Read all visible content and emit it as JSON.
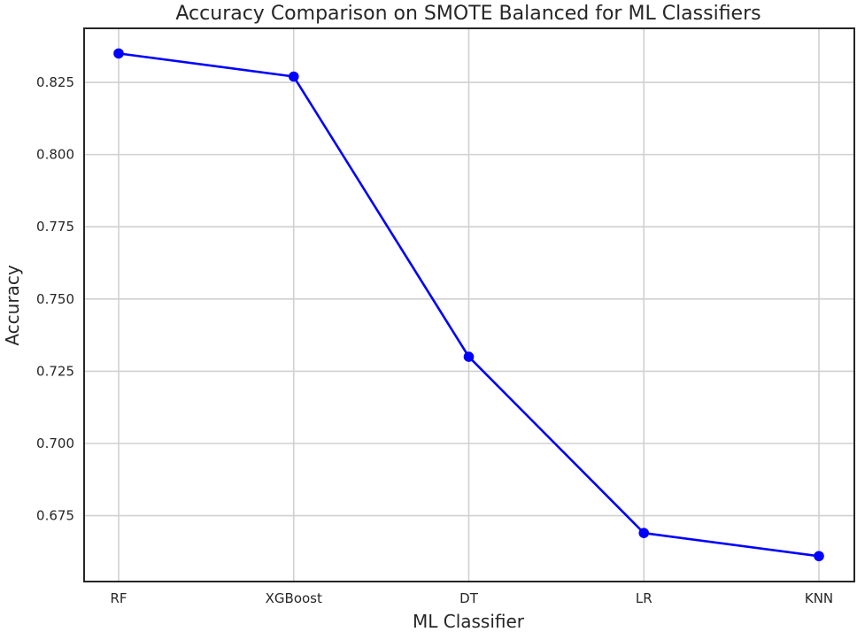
{
  "chart_data": {
    "type": "line",
    "title": "Accuracy Comparison on SMOTE Balanced for ML Classifiers",
    "xlabel": "ML Classifier",
    "ylabel": "Accuracy",
    "categories": [
      "RF",
      "XGBoost",
      "DT",
      "LR",
      "KNN"
    ],
    "series": [
      {
        "values": [
          0.835,
          0.827,
          0.73,
          0.669,
          0.661
        ],
        "color": "#0000ff",
        "marker": "circle"
      }
    ],
    "yticks": [
      0.675,
      0.7,
      0.725,
      0.75,
      0.775,
      0.8,
      0.825
    ],
    "ytick_labels": [
      "0.675",
      "0.700",
      "0.725",
      "0.750",
      "0.775",
      "0.800",
      "0.825"
    ],
    "ylim": [
      0.6522,
      0.8437
    ],
    "grid": true
  }
}
